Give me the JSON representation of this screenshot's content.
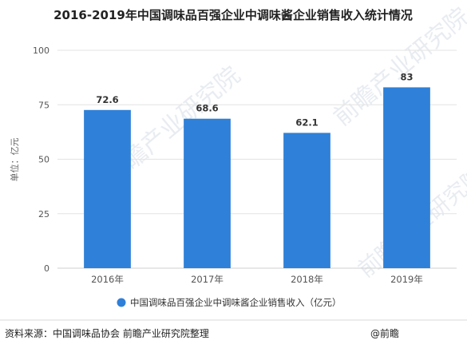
{
  "chart_data": {
    "type": "bar",
    "title": "2016-2019年中国调味品百强企业中调味酱企业销售收入统计情况",
    "ylabel": "单位：亿元",
    "xlabel": "",
    "categories": [
      "2016年",
      "2017年",
      "2018年",
      "2019年"
    ],
    "series": [
      {
        "name": "中国调味品百强企业中调味酱企业销售收入（亿元）",
        "values": [
          72.6,
          68.6,
          62.1,
          83
        ],
        "labels": [
          "72.6",
          "68.6",
          "62.1",
          "83"
        ]
      }
    ],
    "ylim": [
      0,
      100
    ],
    "yticks": [
      "0",
      "25",
      "50",
      "75",
      "100"
    ],
    "grid": true,
    "legend": "bottom-center",
    "colors": {
      "bar": "#2f80d8",
      "grid": "#e3e3e3",
      "legend_dot": "#2f80d8"
    }
  },
  "footer": {
    "source": "资料来源：中国调味品协会 前瞻产业研究院整理",
    "right": "@前瞻"
  },
  "watermark": {
    "text": "前瞻产业研究院"
  }
}
